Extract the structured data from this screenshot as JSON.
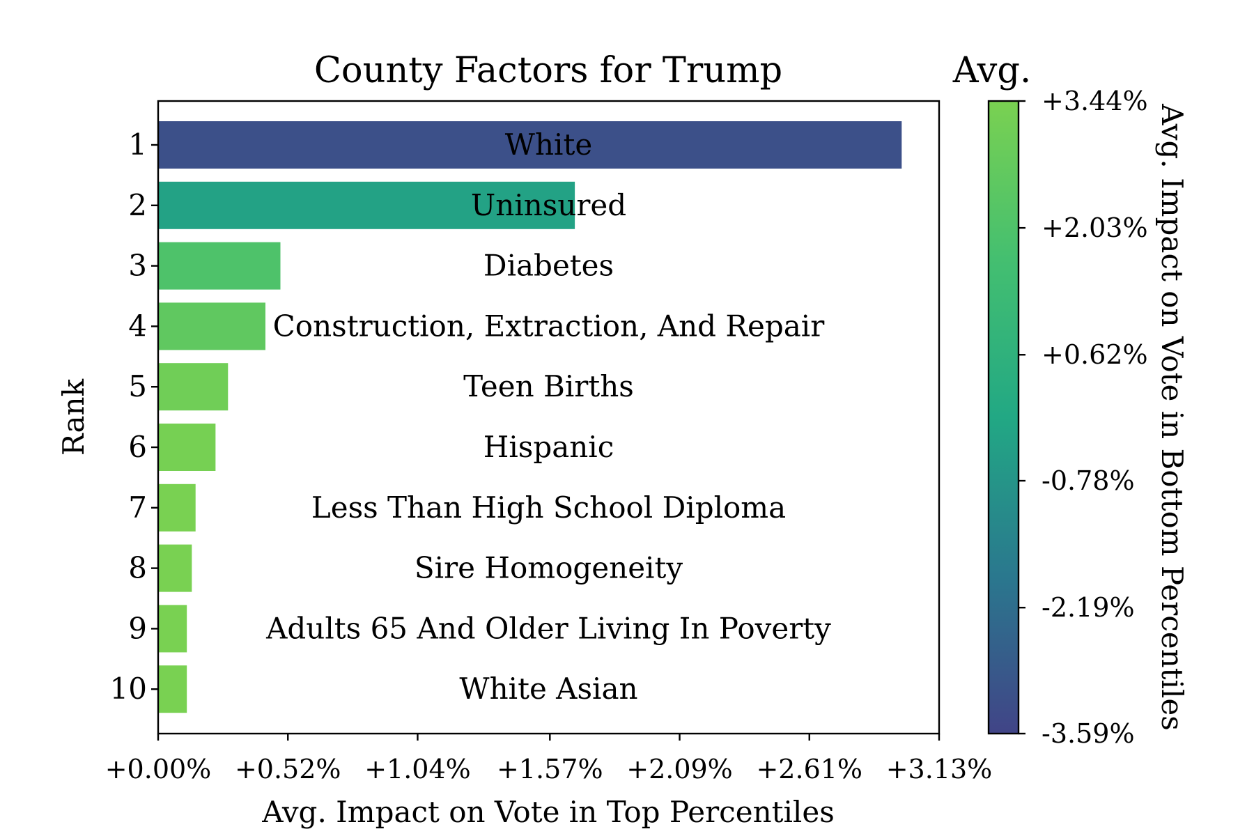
{
  "chart_data": {
    "type": "bar",
    "orientation": "horizontal",
    "title": "County Factors for Trump",
    "xlabel": "Avg. Impact on Vote in Top Percentiles",
    "ylabel": "Rank",
    "xlim": [
      0,
      3.13
    ],
    "x_ticks": [
      {
        "value": 0.0,
        "label": "+0.00%"
      },
      {
        "value": 0.52,
        "label": "+0.52%"
      },
      {
        "value": 1.04,
        "label": "+1.04%"
      },
      {
        "value": 1.57,
        "label": "+1.57%"
      },
      {
        "value": 2.09,
        "label": "+2.09%"
      },
      {
        "value": 2.61,
        "label": "+2.61%"
      },
      {
        "value": 3.13,
        "label": "+3.13%"
      }
    ],
    "bars": [
      {
        "rank": "1",
        "label": "White",
        "value": 2.98,
        "color_value": -3.2
      },
      {
        "rank": "2",
        "label": "Uninsured",
        "value": 1.67,
        "color_value": -0.3
      },
      {
        "rank": "3",
        "label": "Diabetes",
        "value": 0.49,
        "color_value": 2.0
      },
      {
        "rank": "4",
        "label": "Construction, Extraction, And Repair",
        "value": 0.43,
        "color_value": 2.6
      },
      {
        "rank": "5",
        "label": "Teen Births",
        "value": 0.28,
        "color_value": 3.1
      },
      {
        "rank": "6",
        "label": "Hispanic",
        "value": 0.23,
        "color_value": 3.3
      },
      {
        "rank": "7",
        "label": "Less Than High School Diploma",
        "value": 0.15,
        "color_value": 3.4
      },
      {
        "rank": "8",
        "label": "Sire Homogeneity",
        "value": 0.135,
        "color_value": 3.4
      },
      {
        "rank": "9",
        "label": "Adults 65 And Older Living In Poverty",
        "value": 0.115,
        "color_value": 3.4
      },
      {
        "rank": "10",
        "label": "White Asian",
        "value": 0.115,
        "color_value": 3.4
      }
    ],
    "colorbar": {
      "title": "Avg.",
      "label": "Avg. Impact on Vote in Bottom Percentiles",
      "range": [
        -3.59,
        3.44
      ],
      "colormap": "viridis",
      "ticks": [
        {
          "value": 3.44,
          "label": "+3.44%"
        },
        {
          "value": 2.03,
          "label": "+2.03%"
        },
        {
          "value": 0.62,
          "label": "+0.62%"
        },
        {
          "value": -0.78,
          "label": "-0.78%"
        },
        {
          "value": -2.19,
          "label": "-2.19%"
        },
        {
          "value": -3.59,
          "label": "-3.59%"
        }
      ]
    }
  }
}
